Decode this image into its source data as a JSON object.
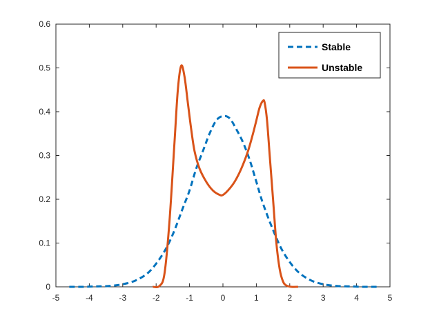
{
  "chart_data": {
    "type": "line",
    "title": "",
    "xlabel": "",
    "ylabel": "",
    "xlim": [
      -5,
      5
    ],
    "ylim": [
      0,
      0.6
    ],
    "xticks": [
      -5,
      -4,
      -3,
      -2,
      -1,
      0,
      1,
      2,
      3,
      4,
      5
    ],
    "yticks": [
      0,
      0.1,
      0.2,
      0.3,
      0.4,
      0.5,
      0.6
    ],
    "xtick_labels": [
      "-5",
      "-4",
      "-3",
      "-2",
      "-1",
      "0",
      "1",
      "2",
      "3",
      "4",
      "5"
    ],
    "ytick_labels": [
      "0",
      "0.1",
      "0.2",
      "0.3",
      "0.4",
      "0.5",
      "0.6"
    ],
    "grid": false,
    "legend_position": "top-right",
    "series": [
      {
        "name": "Stable",
        "color": "#0072BD",
        "style": "dashed",
        "x": [
          -4.6,
          -4.2,
          -3.8,
          -3.4,
          -3.0,
          -2.6,
          -2.2,
          -1.8,
          -1.5,
          -1.2,
          -1.0,
          -0.8,
          -0.6,
          -0.4,
          -0.2,
          0.0,
          0.2,
          0.4,
          0.6,
          0.8,
          1.0,
          1.2,
          1.5,
          1.8,
          2.2,
          2.6,
          3.0,
          3.4,
          3.8,
          4.2,
          4.6
        ],
        "values": [
          0.0,
          0.0,
          0.001,
          0.002,
          0.006,
          0.015,
          0.035,
          0.075,
          0.12,
          0.18,
          0.22,
          0.27,
          0.31,
          0.35,
          0.38,
          0.39,
          0.385,
          0.36,
          0.33,
          0.29,
          0.24,
          0.19,
          0.13,
          0.08,
          0.038,
          0.016,
          0.006,
          0.002,
          0.001,
          0.0,
          0.0
        ]
      },
      {
        "name": "Unstable",
        "color": "#D95319",
        "style": "solid",
        "x": [
          -2.1,
          -1.9,
          -1.75,
          -1.6,
          -1.45,
          -1.35,
          -1.25,
          -1.15,
          -1.05,
          -0.95,
          -0.85,
          -0.7,
          -0.5,
          -0.3,
          -0.1,
          0.0,
          0.15,
          0.35,
          0.55,
          0.75,
          0.9,
          1.0,
          1.1,
          1.2,
          1.25,
          1.32,
          1.4,
          1.5,
          1.6,
          1.7,
          1.8,
          1.9,
          2.05,
          2.25
        ],
        "values": [
          0.0,
          0.002,
          0.03,
          0.15,
          0.33,
          0.45,
          0.505,
          0.48,
          0.42,
          0.36,
          0.31,
          0.27,
          0.24,
          0.22,
          0.21,
          0.21,
          0.22,
          0.24,
          0.27,
          0.31,
          0.35,
          0.38,
          0.41,
          0.425,
          0.42,
          0.38,
          0.3,
          0.2,
          0.1,
          0.04,
          0.012,
          0.003,
          0.0,
          0.0
        ]
      }
    ]
  }
}
